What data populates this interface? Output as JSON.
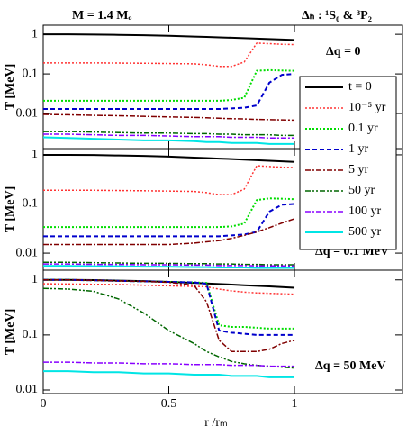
{
  "chart_data": [
    {
      "type": "line",
      "log_y": true,
      "ylabel": "T [MeV]",
      "annotations": [
        "M = 1.4 Mₒ",
        "Δₕ : ¹S₀ & ³P₂",
        "Δq = 0"
      ],
      "legend": "right",
      "x": [
        0,
        0.1,
        0.2,
        0.3,
        0.4,
        0.5,
        0.6,
        0.65,
        0.7,
        0.75,
        0.8,
        0.85,
        0.9,
        0.95,
        1.0
      ],
      "xlim": [
        0,
        1.43
      ],
      "xticks": [
        0,
        0.5,
        1
      ],
      "ylim": [
        0.0013,
        1.7
      ],
      "yticks": [
        1,
        0.1,
        0.01
      ],
      "series": [
        {
          "name": "t = 0",
          "color": "#000000",
          "values": [
            1,
            1,
            0.99,
            0.97,
            0.95,
            0.92,
            0.88,
            0.86,
            0.84,
            0.82,
            0.8,
            0.78,
            0.76,
            0.74,
            0.72
          ]
        },
        {
          "name": "10⁻⁵ yr",
          "color": "#ff3333",
          "values": [
            0.19,
            0.19,
            0.19,
            0.188,
            0.186,
            0.183,
            0.18,
            0.17,
            0.155,
            0.155,
            0.2,
            0.6,
            0.58,
            0.56,
            0.55
          ]
        },
        {
          "name": "0.1 yr",
          "color": "#00dd00",
          "values": [
            0.021,
            0.021,
            0.021,
            0.021,
            0.021,
            0.021,
            0.021,
            0.021,
            0.021,
            0.022,
            0.025,
            0.12,
            0.125,
            0.122,
            0.12
          ]
        },
        {
          "name": "1 yr",
          "color": "#0000cc",
          "values": [
            0.013,
            0.013,
            0.013,
            0.013,
            0.013,
            0.013,
            0.013,
            0.013,
            0.013,
            0.0135,
            0.014,
            0.016,
            0.06,
            0.095,
            0.1
          ]
        },
        {
          "name": "5 yr",
          "color": "#800000",
          "values": [
            0.0095,
            0.0093,
            0.009,
            0.0088,
            0.0085,
            0.0082,
            0.008,
            0.0078,
            0.0076,
            0.0074,
            0.0073,
            0.0071,
            0.007,
            0.0069,
            0.0068
          ]
        },
        {
          "name": "50 yr",
          "color": "#006600",
          "values": [
            0.0035,
            0.0035,
            0.0034,
            0.0033,
            0.0032,
            0.0032,
            0.0031,
            0.0031,
            0.003,
            0.003,
            0.0029,
            0.0029,
            0.0029,
            0.0028,
            0.0028
          ]
        },
        {
          "name": "100 yr",
          "color": "#8800ff",
          "values": [
            0.003,
            0.003,
            0.0029,
            0.0028,
            0.0028,
            0.0027,
            0.0026,
            0.0026,
            0.0026,
            0.0025,
            0.0025,
            0.0025,
            0.0024,
            0.0024,
            0.0024
          ]
        },
        {
          "name": "500 yr",
          "color": "#00e5e5",
          "values": [
            0.0025,
            0.0024,
            0.0023,
            0.0022,
            0.0021,
            0.0021,
            0.002,
            0.0019,
            0.0019,
            0.0018,
            0.0018,
            0.0018,
            0.0017,
            0.0017,
            0.0017
          ]
        }
      ]
    },
    {
      "type": "line",
      "log_y": true,
      "ylabel": "T [MeV]",
      "annotations": [
        "Δq = 0.1 MeV"
      ],
      "x": [
        0,
        0.1,
        0.2,
        0.3,
        0.4,
        0.5,
        0.6,
        0.65,
        0.7,
        0.75,
        0.8,
        0.85,
        0.9,
        0.95,
        1.0
      ],
      "xlim": [
        0,
        1.43
      ],
      "xticks": [
        0,
        0.5,
        1
      ],
      "ylim": [
        0.0045,
        1.34
      ],
      "yticks": [
        1,
        0.1,
        0.01
      ],
      "series": [
        {
          "color": "#000000",
          "values": [
            1,
            1,
            0.99,
            0.97,
            0.95,
            0.92,
            0.88,
            0.86,
            0.84,
            0.82,
            0.8,
            0.78,
            0.76,
            0.74,
            0.72
          ]
        },
        {
          "color": "#ff3333",
          "values": [
            0.19,
            0.19,
            0.19,
            0.188,
            0.186,
            0.183,
            0.18,
            0.17,
            0.155,
            0.155,
            0.2,
            0.6,
            0.58,
            0.56,
            0.55
          ]
        },
        {
          "color": "#00dd00",
          "values": [
            0.034,
            0.034,
            0.034,
            0.034,
            0.034,
            0.034,
            0.034,
            0.034,
            0.034,
            0.035,
            0.04,
            0.12,
            0.13,
            0.128,
            0.125
          ]
        },
        {
          "color": "#0000cc",
          "values": [
            0.022,
            0.022,
            0.022,
            0.022,
            0.022,
            0.022,
            0.022,
            0.022,
            0.022,
            0.023,
            0.024,
            0.027,
            0.07,
            0.097,
            0.1
          ]
        },
        {
          "color": "#800000",
          "values": [
            0.015,
            0.015,
            0.015,
            0.015,
            0.015,
            0.015,
            0.016,
            0.017,
            0.018,
            0.02,
            0.023,
            0.027,
            0.033,
            0.041,
            0.05
          ]
        },
        {
          "color": "#006600",
          "values": [
            0.0065,
            0.0065,
            0.0064,
            0.0063,
            0.0062,
            0.0062,
            0.0061,
            0.0061,
            0.006,
            0.006,
            0.0059,
            0.0059,
            0.0058,
            0.0058,
            0.0058
          ]
        },
        {
          "color": "#8800ff",
          "values": [
            0.006,
            0.006,
            0.0059,
            0.0059,
            0.0058,
            0.0058,
            0.0057,
            0.0057,
            0.0056,
            0.0056,
            0.0056,
            0.0055,
            0.0055,
            0.0055,
            0.0055
          ]
        },
        {
          "color": "#00e5e5",
          "values": [
            0.0055,
            0.0055,
            0.0054,
            0.0054,
            0.0053,
            0.0053,
            0.0052,
            0.0052,
            0.0051,
            0.0051,
            0.0051,
            0.005,
            0.005,
            0.005,
            0.005
          ]
        }
      ]
    },
    {
      "type": "line",
      "log_y": true,
      "ylabel": "T [MeV]",
      "xlabel": "r /rₘ",
      "annotations": [
        "Δq = 50 MeV"
      ],
      "x": [
        0,
        0.1,
        0.2,
        0.3,
        0.4,
        0.5,
        0.6,
        0.65,
        0.7,
        0.75,
        0.8,
        0.85,
        0.9,
        0.95,
        1.0
      ],
      "xlim": [
        0,
        1.43
      ],
      "xticks": [
        0,
        0.5,
        1
      ],
      "ylim": [
        0.0086,
        1.5
      ],
      "yticks": [
        1,
        0.1,
        0.01
      ],
      "series": [
        {
          "color": "#000000",
          "values": [
            1,
            1,
            0.99,
            0.97,
            0.95,
            0.92,
            0.88,
            0.86,
            0.84,
            0.82,
            0.8,
            0.78,
            0.76,
            0.74,
            0.72
          ]
        },
        {
          "color": "#ff3333",
          "values": [
            0.85,
            0.84,
            0.83,
            0.82,
            0.8,
            0.78,
            0.76,
            0.75,
            0.68,
            0.63,
            0.6,
            0.58,
            0.57,
            0.56,
            0.55
          ]
        },
        {
          "color": "#00dd00",
          "values": [
            1,
            1,
            0.98,
            0.96,
            0.94,
            0.92,
            0.9,
            0.88,
            0.15,
            0.14,
            0.14,
            0.135,
            0.13,
            0.13,
            0.13
          ]
        },
        {
          "color": "#0000cc",
          "values": [
            1,
            1,
            0.98,
            0.96,
            0.94,
            0.92,
            0.9,
            0.85,
            0.12,
            0.11,
            0.105,
            0.1,
            0.1,
            0.1,
            0.1
          ]
        },
        {
          "color": "#800000",
          "values": [
            1,
            1,
            0.98,
            0.96,
            0.94,
            0.9,
            0.8,
            0.4,
            0.08,
            0.05,
            0.05,
            0.05,
            0.055,
            0.07,
            0.08
          ]
        },
        {
          "color": "#006600",
          "values": [
            0.7,
            0.68,
            0.62,
            0.45,
            0.25,
            0.12,
            0.07,
            0.05,
            0.04,
            0.033,
            0.03,
            0.028,
            0.027,
            0.026,
            0.025
          ]
        },
        {
          "color": "#8800ff",
          "values": [
            0.032,
            0.032,
            0.031,
            0.031,
            0.03,
            0.03,
            0.029,
            0.029,
            0.029,
            0.028,
            0.028,
            0.028,
            0.027,
            0.027,
            0.027
          ]
        },
        {
          "color": "#00e5e5",
          "values": [
            0.022,
            0.022,
            0.021,
            0.021,
            0.02,
            0.02,
            0.019,
            0.019,
            0.019,
            0.018,
            0.018,
            0.018,
            0.017,
            0.017,
            0.017
          ]
        }
      ]
    }
  ]
}
